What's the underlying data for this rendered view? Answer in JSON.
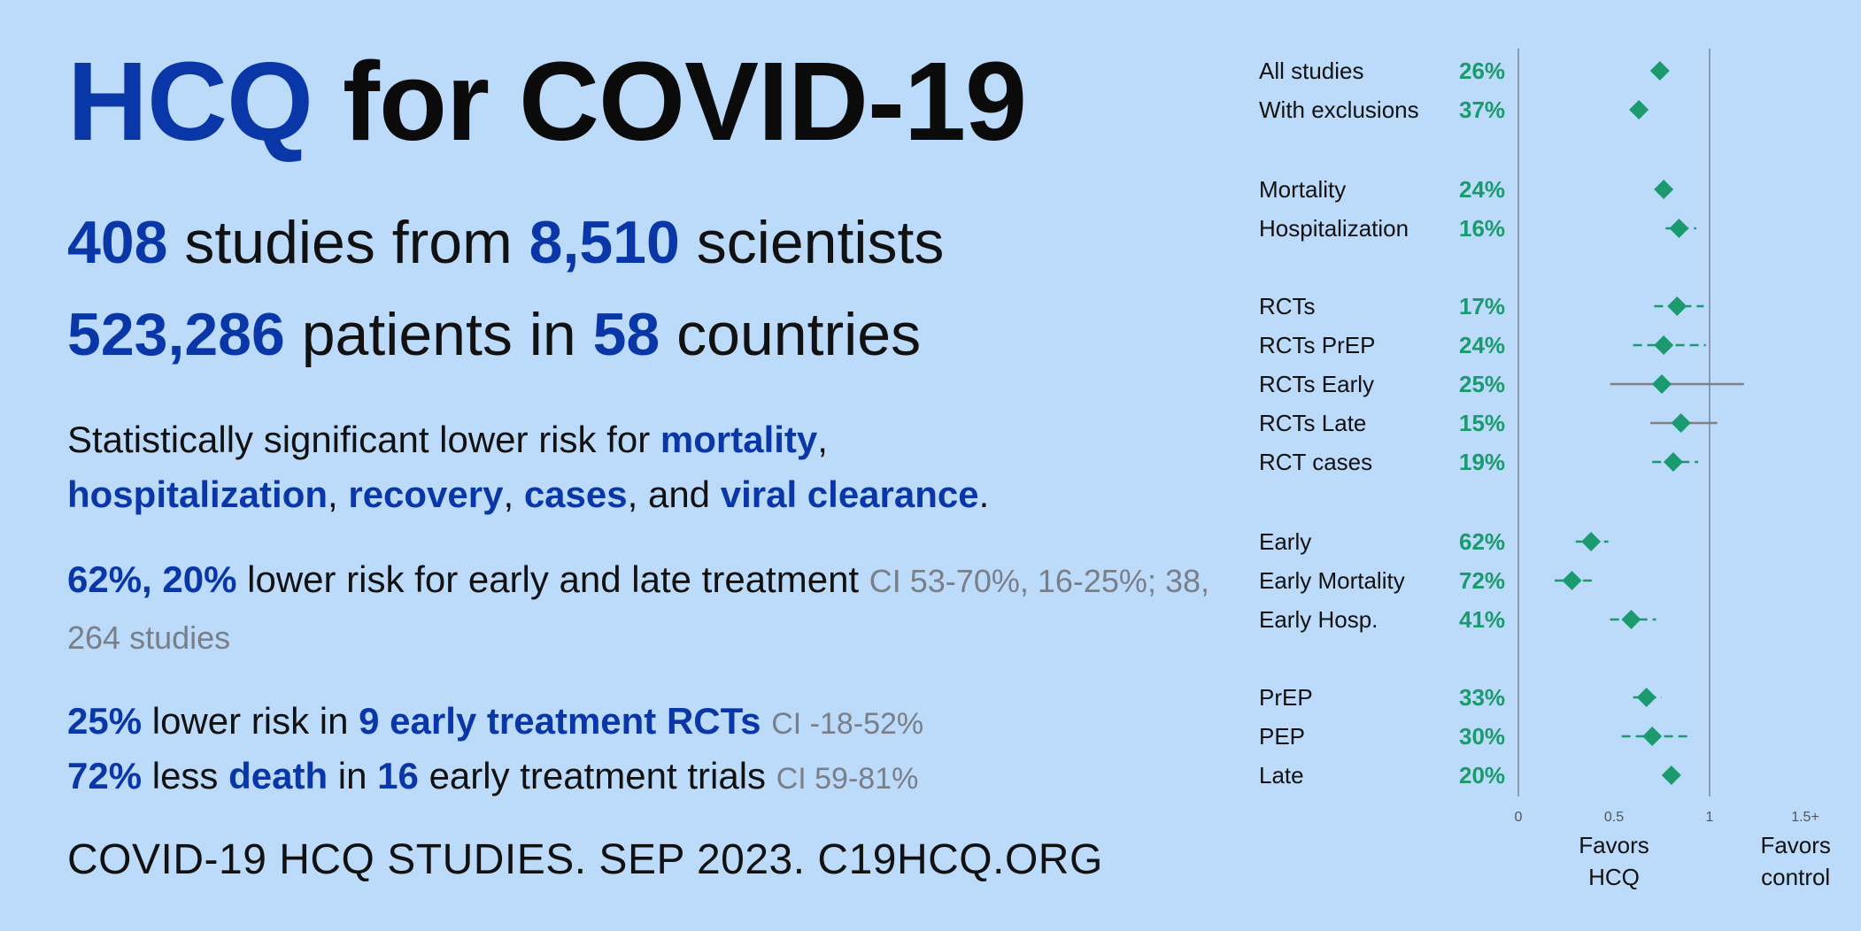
{
  "headline": {
    "highlight": "HCQ",
    "rest": "for COVID-19"
  },
  "stats": {
    "studies": "408",
    "studies_label": "studies from",
    "scientists": "8,510",
    "scientists_label": "scientists",
    "patients": "523,286",
    "patients_label": "patients in",
    "countries": "58",
    "countries_label": "countries"
  },
  "significance": {
    "intro": "Statistically significant lower risk for",
    "o1": "mortality",
    "sep1": ",",
    "o2": "hospitalization",
    "sep2": ",",
    "o3": "recovery",
    "sep3": ",",
    "o4": "cases",
    "sep4": ", and",
    "o5": "viral clearance",
    "end": "."
  },
  "early_late": {
    "values": "62%, 20%",
    "text": "lower risk for early and late treatment",
    "ci": "CI 53-70%, 16-25%; 38, 264 studies"
  },
  "rct_line": {
    "value": "25%",
    "text1": "lower risk in",
    "count": "9 early treatment RCTs",
    "ci": "CI -18-52%"
  },
  "death_line": {
    "value": "72%",
    "text1": "less",
    "word": "death",
    "text2": "in",
    "count": "16",
    "text3": "early treatment trials",
    "ci": "CI 59-81%"
  },
  "footer": "COVID-19 HCQ STUDIES. SEP 2023. C19HCQ.ORG",
  "chart_data": {
    "type": "scatter",
    "subtype": "forest-plot",
    "xlim": [
      0,
      1.5
    ],
    "xticks": [
      "0",
      "0.5",
      "1",
      "1.5+"
    ],
    "reference_line": 1,
    "favors_left": [
      "Favors",
      "HCQ"
    ],
    "favors_right": [
      "Favors",
      "control"
    ],
    "colors": {
      "marker": "#1a9a6e",
      "ci": "#1a9a6e",
      "ci_wide": "#808080",
      "axis": "#8a9bb3"
    },
    "rows": [
      {
        "label": "All studies",
        "pct": "26%",
        "value": 0.74,
        "low": null,
        "high": null
      },
      {
        "label": "With exclusions",
        "pct": "37%",
        "value": 0.63,
        "low": null,
        "high": null
      },
      {
        "label": "Mortality",
        "pct": "24%",
        "value": 0.76,
        "low": null,
        "high": null
      },
      {
        "label": "Hospitalization",
        "pct": "16%",
        "value": 0.84,
        "low": 0.77,
        "high": 0.93
      },
      {
        "label": "RCTs",
        "pct": "17%",
        "value": 0.83,
        "low": 0.71,
        "high": 0.97
      },
      {
        "label": "RCTs PrEP",
        "pct": "24%",
        "value": 0.76,
        "low": 0.6,
        "high": 0.98
      },
      {
        "label": "RCTs Early",
        "pct": "25%",
        "value": 0.75,
        "low": 0.48,
        "high": 1.18
      },
      {
        "label": "RCTs Late",
        "pct": "15%",
        "value": 0.85,
        "low": 0.69,
        "high": 1.04
      },
      {
        "label": "RCT cases",
        "pct": "19%",
        "value": 0.81,
        "low": 0.7,
        "high": 0.94
      },
      {
        "label": "Early",
        "pct": "62%",
        "value": 0.38,
        "low": 0.3,
        "high": 0.47
      },
      {
        "label": "Early Mortality",
        "pct": "72%",
        "value": 0.28,
        "low": 0.19,
        "high": 0.41
      },
      {
        "label": "Early Hosp.",
        "pct": "41%",
        "value": 0.59,
        "low": 0.48,
        "high": 0.72
      },
      {
        "label": "PrEP",
        "pct": "33%",
        "value": 0.67,
        "low": 0.6,
        "high": 0.75
      },
      {
        "label": "PEP",
        "pct": "30%",
        "value": 0.7,
        "low": 0.54,
        "high": 0.9
      },
      {
        "label": "Late",
        "pct": "20%",
        "value": 0.8,
        "low": null,
        "high": null
      }
    ]
  }
}
